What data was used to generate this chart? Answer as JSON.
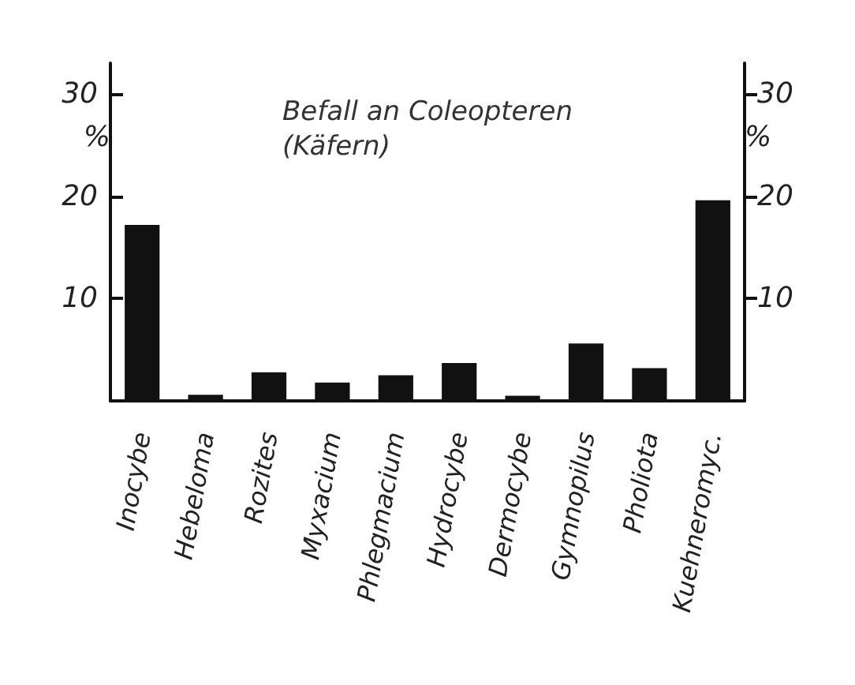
{
  "chart_data": {
    "type": "bar",
    "title": "Befall an Coleopteren\n(Käfern)",
    "categories": [
      "Inocybe",
      "Hebeloma",
      "Rozites",
      "Myxacium",
      "Phlegmacium",
      "Hydrocybe",
      "Dermocybe",
      "Gymnopilus",
      "Pholiota",
      "Kuehneromyc."
    ],
    "values": [
      17.2,
      0.6,
      2.8,
      1.8,
      2.5,
      3.7,
      0.5,
      5.6,
      3.2,
      19.6
    ],
    "color": "#111111",
    "ylabel": "%",
    "y2label": "%",
    "ylim": [
      0,
      33
    ],
    "yticks": [
      10,
      20,
      30
    ],
    "y2lim": [
      0,
      33
    ],
    "y2ticks": [
      10,
      20,
      30
    ],
    "grid": false
  }
}
